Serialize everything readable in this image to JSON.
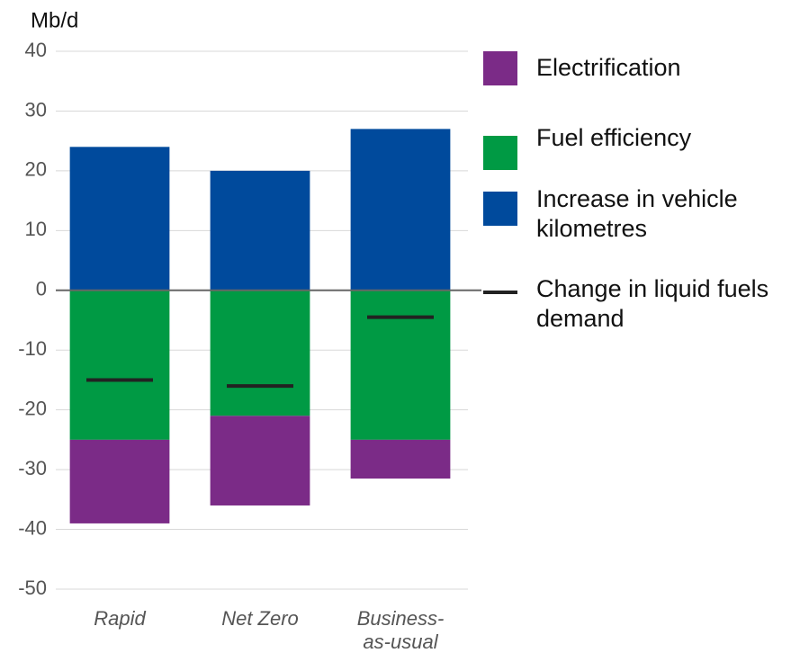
{
  "chart_data": {
    "type": "bar",
    "stacked": true,
    "y_label": "Mb/d",
    "categories": [
      "Rapid",
      "Net Zero",
      "Business-as-usual"
    ],
    "series": [
      {
        "name": "Electrification",
        "color": "#7b2b87",
        "kind": "bar",
        "values": [
          -14,
          -15,
          -6.5
        ]
      },
      {
        "name": "Fuel efficiency",
        "color": "#009a44",
        "kind": "bar",
        "values": [
          -25,
          -21,
          -25
        ]
      },
      {
        "name": "Increase in vehicle kilometres",
        "color": "#004a9c",
        "kind": "bar",
        "values": [
          24,
          20,
          27
        ]
      },
      {
        "name": "Change in liquid fuels demand",
        "color": "#222222",
        "kind": "marker",
        "values": [
          -15,
          -16,
          -4.5
        ]
      }
    ],
    "ylim": [
      -50,
      40
    ],
    "yticks": [
      -50,
      -40,
      -30,
      -20,
      -10,
      0,
      10,
      20,
      30,
      40
    ],
    "grid": true
  }
}
